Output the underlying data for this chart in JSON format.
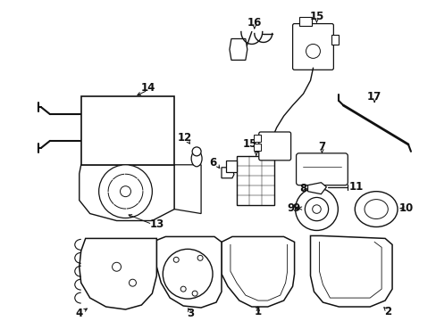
{
  "bg_color": "#ffffff",
  "line_color": "#111111",
  "fig_width": 4.89,
  "fig_height": 3.6,
  "dpi": 100
}
